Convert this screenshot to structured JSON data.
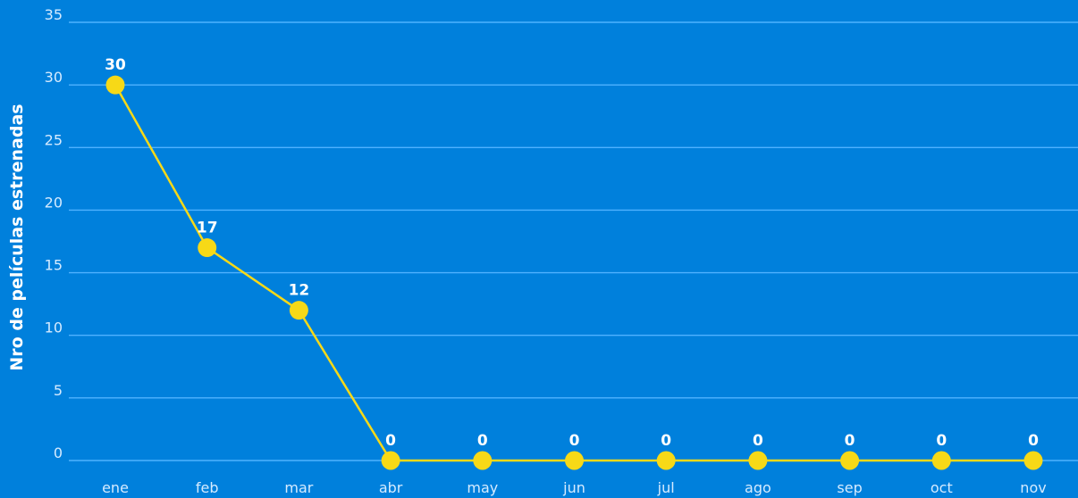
{
  "chart_data": {
    "type": "line",
    "ylabel": "Nro de películas estrenadas",
    "xlabel": "",
    "categories": [
      "ene",
      "feb",
      "mar",
      "abr",
      "may",
      "jun",
      "jul",
      "ago",
      "sep",
      "oct",
      "nov"
    ],
    "values": [
      30,
      17,
      12,
      0,
      0,
      0,
      0,
      0,
      0,
      0,
      0
    ],
    "ylim": [
      0,
      35
    ],
    "yticks": [
      0,
      5,
      10,
      15,
      20,
      25,
      30,
      35
    ],
    "grid": true,
    "colors": {
      "background": "#0080DC",
      "line": "#F7D917",
      "marker": "#F7D917",
      "grid": "#4FB2FF",
      "tick_text": "#D6EBFF",
      "label_text": "#FFFFFF"
    }
  }
}
